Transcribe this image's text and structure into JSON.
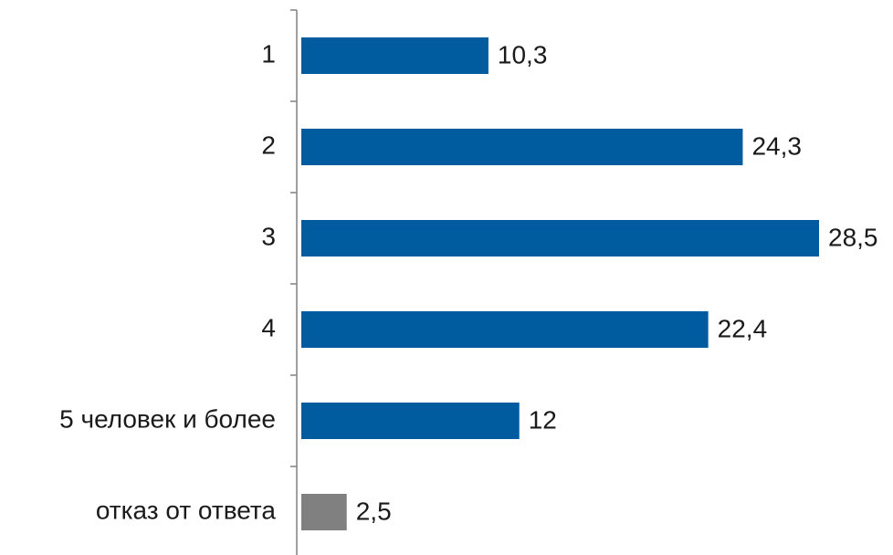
{
  "chart_data": {
    "type": "bar",
    "orientation": "horizontal",
    "categories": [
      "1",
      "2",
      "3",
      "4",
      "5 человек и более",
      "отказ от ответа"
    ],
    "values": [
      10.3,
      24.3,
      28.5,
      22.4,
      12,
      2.5
    ],
    "value_labels": [
      "10,3",
      "24,3",
      "28,5",
      "22,4",
      "12",
      "2,5"
    ],
    "colors": [
      "#005b9f",
      "#005b9f",
      "#005b9f",
      "#005b9f",
      "#005b9f",
      "#808080"
    ]
  }
}
